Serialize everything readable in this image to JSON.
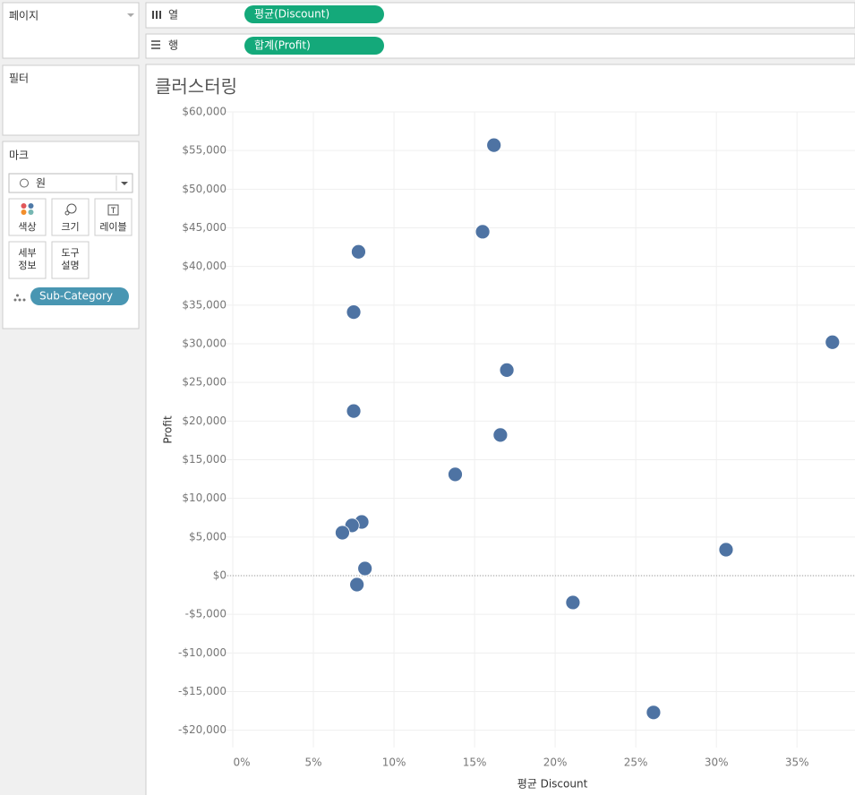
{
  "sidebar": {
    "pages": "페이지",
    "filters": "필터",
    "marks": {
      "title": "마크",
      "mark_type": "원",
      "buttons": [
        [
          "색상"
        ],
        [
          "크기"
        ],
        [
          "레이블"
        ],
        [
          "세부",
          "정보"
        ],
        [
          "도구",
          "설명"
        ]
      ],
      "detail_pill": "Sub-Category"
    }
  },
  "shelves": {
    "columns": {
      "label": "열",
      "pill": "평균(Discount)"
    },
    "rows": {
      "label": "행",
      "pill": "합계(Profit)"
    }
  },
  "chart_data": {
    "type": "scatter",
    "title": "클러스터링",
    "x_label": "평균 Discount",
    "y_label": "Profit",
    "x": [
      16.2,
      15.5,
      7.8,
      7.5,
      37.2,
      17.0,
      7.5,
      16.6,
      13.8,
      8.0,
      7.4,
      6.8,
      30.6,
      8.2,
      7.7,
      21.1,
      26.1
    ],
    "values": [
      55700,
      44500,
      41900,
      34100,
      30200,
      26600,
      21300,
      18200,
      13100,
      6950,
      6500,
      5560,
      3360,
      930,
      -1160,
      -3470,
      -17700
    ],
    "color": "#4e73a3",
    "xlim": [
      -0.5,
      38.6
    ],
    "xticks": [
      {
        "value": 0,
        "label": "0%"
      },
      {
        "value": 5,
        "label": "5%"
      },
      {
        "value": 10,
        "label": "10%"
      },
      {
        "value": 15,
        "label": "15%"
      },
      {
        "value": 20,
        "label": "20%"
      },
      {
        "value": 25,
        "label": "25%"
      },
      {
        "value": 30,
        "label": "30%"
      },
      {
        "value": 35,
        "label": "35%"
      }
    ],
    "ylim": [
      -22240,
      60000
    ],
    "yticks": [
      {
        "value": 60000,
        "label": "$60,000"
      },
      {
        "value": 55000,
        "label": "$55,000"
      },
      {
        "value": 50000,
        "label": "$50,000"
      },
      {
        "value": 45000,
        "label": "$45,000"
      },
      {
        "value": 40000,
        "label": "$40,000"
      },
      {
        "value": 35000,
        "label": "$35,000"
      },
      {
        "value": 30000,
        "label": "$30,000"
      },
      {
        "value": 25000,
        "label": "$25,000"
      },
      {
        "value": 20000,
        "label": "$20,000"
      },
      {
        "value": 15000,
        "label": "$15,000"
      },
      {
        "value": 10000,
        "label": "$10,000"
      },
      {
        "value": 5000,
        "label": "$5,000"
      },
      {
        "value": 0,
        "label": "$0"
      },
      {
        "value": -5000,
        "label": "-$5,000"
      },
      {
        "value": -10000,
        "label": "-$10,000"
      },
      {
        "value": -15000,
        "label": "-$15,000"
      },
      {
        "value": -20000,
        "label": "-$20,000"
      }
    ],
    "grid": true
  }
}
